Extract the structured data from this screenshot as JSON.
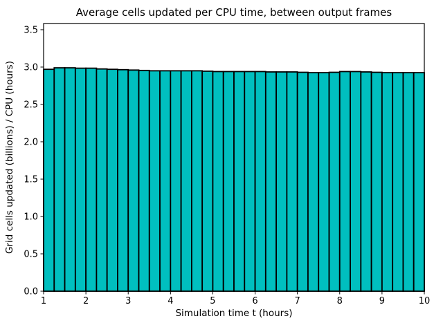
{
  "chart_data": {
    "type": "bar",
    "title": "Average cells updated per CPU time, between output frames",
    "xlabel": "Simulation time t (hours)",
    "ylabel": "Grid cells updated (billions) / CPU (hours)",
    "xlim": [
      1,
      10
    ],
    "ylim": [
      0,
      3.583
    ],
    "x_ticks": [
      1,
      2,
      3,
      4,
      5,
      6,
      7,
      8,
      9,
      10
    ],
    "x_tick_labels": [
      "1",
      "2",
      "3",
      "4",
      "5",
      "6",
      "7",
      "8",
      "9",
      "10"
    ],
    "y_ticks": [
      0.0,
      0.5,
      1.0,
      1.5,
      2.0,
      2.5,
      3.0,
      3.5
    ],
    "y_tick_labels": [
      "0.0",
      "0.5",
      "1.0",
      "1.5",
      "2.0",
      "2.5",
      "3.0",
      "3.5"
    ],
    "grid": false,
    "legend": null,
    "bar_width": 0.25,
    "bar_alignment": "left-edge",
    "bar_fill_color": "#00bfbf",
    "bar_edge_color": "#000000",
    "bar_left_edges": [
      1.0,
      1.25,
      1.5,
      1.75,
      2.0,
      2.25,
      2.5,
      2.75,
      3.0,
      3.25,
      3.5,
      3.75,
      4.0,
      4.25,
      4.5,
      4.75,
      5.0,
      5.25,
      5.5,
      5.75,
      6.0,
      6.25,
      6.5,
      6.75,
      7.0,
      7.25,
      7.5,
      7.75,
      8.0,
      8.25,
      8.5,
      8.75,
      9.0,
      9.25,
      9.5,
      9.75
    ],
    "values": [
      2.97,
      2.99,
      2.99,
      2.985,
      2.985,
      2.975,
      2.97,
      2.965,
      2.96,
      2.955,
      2.95,
      2.95,
      2.95,
      2.95,
      2.95,
      2.945,
      2.94,
      2.94,
      2.94,
      2.94,
      2.94,
      2.935,
      2.935,
      2.935,
      2.93,
      2.925,
      2.925,
      2.93,
      2.94,
      2.94,
      2.935,
      2.93,
      2.925,
      2.925,
      2.925,
      2.925
    ]
  }
}
